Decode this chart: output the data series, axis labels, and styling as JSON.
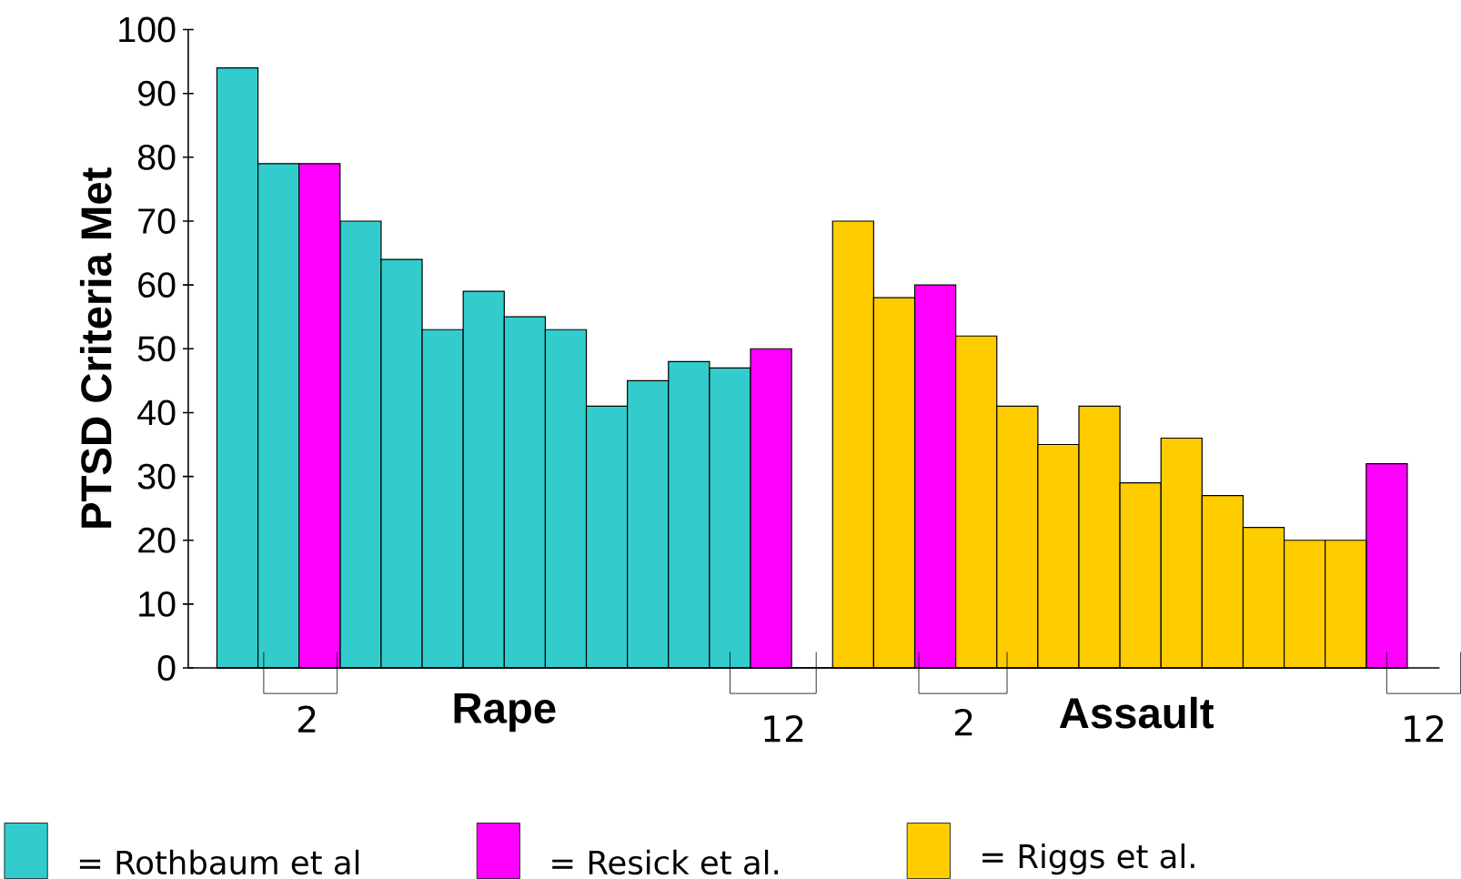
{
  "chart_data": {
    "type": "bar",
    "ylabel": "PTSD Criteria Met",
    "categories": [
      null,
      null,
      null,
      null,
      null,
      null,
      null,
      null,
      null,
      null,
      null,
      null,
      null,
      null,
      null,
      null,
      null,
      null,
      null,
      null,
      null,
      null,
      null,
      null,
      null,
      null,
      null,
      null,
      null
    ],
    "series": [
      {
        "name": "= Rothbaum et al",
        "color": "#33cccc",
        "values": [
          94,
          79,
          null,
          70,
          64,
          53,
          59,
          55,
          53,
          41,
          45,
          48,
          47,
          null,
          null,
          null,
          null,
          null,
          null,
          null,
          null,
          null,
          null,
          null,
          null,
          null,
          null,
          null,
          null
        ]
      },
      {
        "name": "= Resick et al.",
        "color": "#ff00ff",
        "values": [
          null,
          null,
          79,
          null,
          null,
          null,
          null,
          null,
          null,
          null,
          null,
          null,
          null,
          50,
          null,
          null,
          null,
          60,
          null,
          null,
          null,
          null,
          null,
          null,
          null,
          null,
          null,
          null,
          32
        ]
      },
      {
        "name": "= Riggs et al.",
        "color": "#ffcc00",
        "values": [
          null,
          null,
          null,
          null,
          null,
          null,
          null,
          null,
          null,
          null,
          null,
          null,
          null,
          null,
          null,
          70,
          58,
          null,
          52,
          41,
          35,
          41,
          29,
          36,
          27,
          22,
          20,
          20,
          null
        ]
      }
    ],
    "ylim": [
      0,
      100
    ],
    "yticks": [
      0,
      10,
      20,
      30,
      40,
      50,
      60,
      70,
      80,
      90,
      100
    ],
    "grid": false,
    "legend": "bottom",
    "annotations": [
      "2",
      "Rape",
      "12",
      "2",
      "Assault",
      "12"
    ]
  }
}
